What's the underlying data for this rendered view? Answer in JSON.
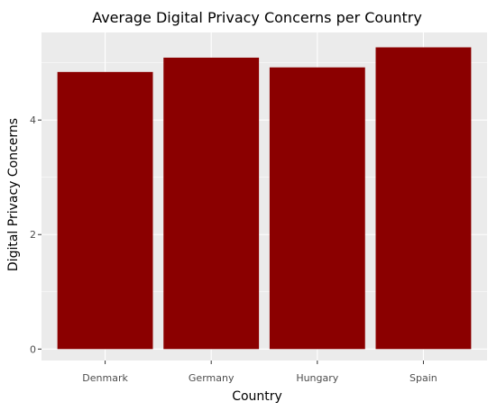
{
  "chart_data": {
    "type": "bar",
    "title": "Average Digital Privacy Concerns per Country",
    "xlabel": "Country",
    "ylabel": "Digital Privacy Concerns",
    "categories": [
      "Denmark",
      "Germany",
      "Hungary",
      "Spain"
    ],
    "values": [
      4.84,
      5.09,
      4.92,
      5.27
    ],
    "ylim": [
      -0.2,
      5.53
    ],
    "yticks": [
      0,
      2,
      4
    ],
    "grid": true,
    "colors": {
      "bar": "#8b0000",
      "panel": "#ebebeb",
      "grid_major": "#ffffff",
      "tick_text": "#4d4d4d",
      "text": "#000000"
    }
  }
}
